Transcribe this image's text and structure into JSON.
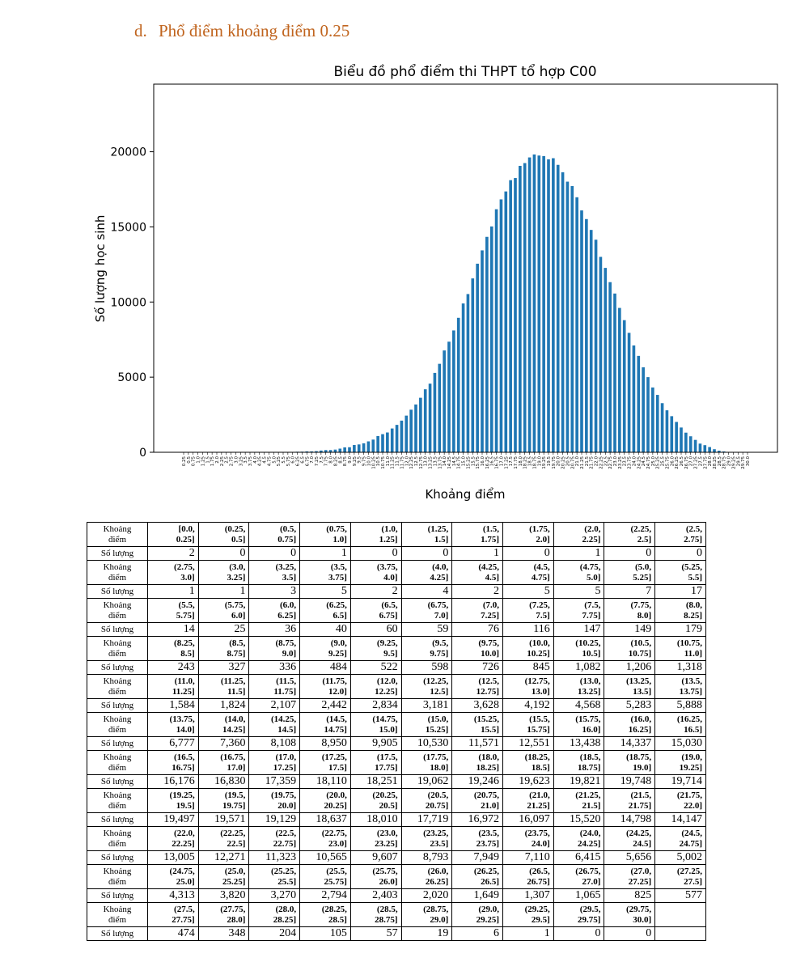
{
  "heading": {
    "marker": "d.",
    "text": "Phổ điểm khoảng điểm 0.25"
  },
  "chart_data": {
    "type": "bar",
    "title": "Biểu đồ phổ điểm thi THPT tổ hợp C00",
    "xlabel": "Khoảng điểm",
    "ylabel": "Số lượng học sinh",
    "ylim": [
      0,
      24500
    ],
    "yticks": [
      0,
      5000,
      10000,
      15000,
      20000
    ],
    "bar_color": "#1f77b4",
    "categories": [
      "0.25",
      "0.5",
      "0.75",
      "1.0",
      "1.25",
      "1.5",
      "1.75",
      "2.0",
      "2.25",
      "2.5",
      "2.75",
      "3.0",
      "3.25",
      "3.5",
      "3.75",
      "4.0",
      "4.25",
      "4.5",
      "4.75",
      "5.0",
      "5.25",
      "5.5",
      "5.75",
      "6.0",
      "6.25",
      "6.5",
      "6.75",
      "7.0",
      "7.25",
      "7.5",
      "7.75",
      "8.0",
      "8.25",
      "8.5",
      "8.75",
      "9.0",
      "9.25",
      "9.5",
      "9.75",
      "10.0",
      "10.25",
      "10.5",
      "10.75",
      "11.0",
      "11.25",
      "11.5",
      "11.75",
      "12.0",
      "12.25",
      "12.5",
      "12.75",
      "13.0",
      "13.25",
      "13.5",
      "13.75",
      "14.0",
      "14.25",
      "14.5",
      "14.75",
      "15.0",
      "15.25",
      "15.5",
      "15.75",
      "16.0",
      "16.25",
      "16.5",
      "16.75",
      "17.0",
      "17.25",
      "17.5",
      "17.75",
      "18.0",
      "18.25",
      "18.5",
      "18.75",
      "19.0",
      "19.25",
      "19.5",
      "19.75",
      "20.0",
      "20.25",
      "20.5",
      "20.75",
      "21.0",
      "21.25",
      "21.5",
      "21.75",
      "22.0",
      "22.25",
      "22.5",
      "22.75",
      "23.0",
      "23.25",
      "23.5",
      "23.75",
      "24.0",
      "24.25",
      "24.5",
      "24.75",
      "25.0",
      "25.25",
      "25.5",
      "25.75",
      "26.0",
      "26.25",
      "26.5",
      "26.75",
      "27.0",
      "27.25",
      "27.5",
      "27.75",
      "28.0",
      "28.25",
      "28.5",
      "28.75",
      "29.0",
      "29.25",
      "29.5",
      "29.75",
      "30.0"
    ],
    "values": [
      2,
      0,
      0,
      1,
      0,
      0,
      1,
      0,
      1,
      0,
      0,
      1,
      1,
      3,
      5,
      2,
      4,
      2,
      5,
      5,
      7,
      17,
      14,
      25,
      36,
      40,
      60,
      59,
      76,
      116,
      147,
      149,
      179,
      243,
      327,
      336,
      484,
      522,
      598,
      726,
      845,
      1082,
      1206,
      1318,
      1584,
      1824,
      2107,
      2442,
      2834,
      3181,
      3628,
      4192,
      4568,
      5283,
      5888,
      6777,
      7360,
      8108,
      8950,
      9905,
      10530,
      11571,
      12551,
      13438,
      14337,
      15030,
      16176,
      16830,
      17359,
      18110,
      18251,
      19062,
      19246,
      19623,
      19821,
      19748,
      19714,
      19497,
      19571,
      19129,
      18637,
      18010,
      17719,
      16972,
      16097,
      15520,
      14798,
      14147,
      13005,
      12271,
      11323,
      10565,
      9607,
      8793,
      7949,
      7110,
      6415,
      5656,
      5002,
      4313,
      3820,
      3270,
      2794,
      2403,
      2020,
      1649,
      1307,
      1065,
      825,
      577,
      474,
      348,
      204,
      105,
      57,
      19,
      6,
      1,
      0,
      0
    ]
  },
  "table": {
    "row_header_range": [
      "Khoảng",
      "điểm"
    ],
    "row_header_count": "Số lượng",
    "blocks": [
      {
        "ranges": [
          [
            "[0.0,",
            "0.25]"
          ],
          [
            "(0.25,",
            "0.5]"
          ],
          [
            "(0.5,",
            "0.75]"
          ],
          [
            "(0.75,",
            "1.0]"
          ],
          [
            "(1.0,",
            "1.25]"
          ],
          [
            "(1.25,",
            "1.5]"
          ],
          [
            "(1.5,",
            "1.75]"
          ],
          [
            "(1.75,",
            "2.0]"
          ],
          [
            "(2.0,",
            "2.25]"
          ],
          [
            "(2.25,",
            "2.5]"
          ],
          [
            "(2.5,",
            "2.75]"
          ]
        ],
        "counts": [
          "2",
          "0",
          "0",
          "1",
          "0",
          "0",
          "1",
          "0",
          "1",
          "0",
          "0"
        ]
      },
      {
        "ranges": [
          [
            "(2.75,",
            "3.0]"
          ],
          [
            "(3.0,",
            "3.25]"
          ],
          [
            "(3.25,",
            "3.5]"
          ],
          [
            "(3.5,",
            "3.75]"
          ],
          [
            "(3.75,",
            "4.0]"
          ],
          [
            "(4.0,",
            "4.25]"
          ],
          [
            "(4.25,",
            "4.5]"
          ],
          [
            "(4.5,",
            "4.75]"
          ],
          [
            "(4.75,",
            "5.0]"
          ],
          [
            "(5.0,",
            "5.25]"
          ],
          [
            "(5.25,",
            "5.5]"
          ]
        ],
        "counts": [
          "1",
          "1",
          "3",
          "5",
          "2",
          "4",
          "2",
          "5",
          "5",
          "7",
          "17"
        ]
      },
      {
        "ranges": [
          [
            "(5.5,",
            "5.75]"
          ],
          [
            "(5.75,",
            "6.0]"
          ],
          [
            "(6.0,",
            "6.25]"
          ],
          [
            "(6.25,",
            "6.5]"
          ],
          [
            "(6.5,",
            "6.75]"
          ],
          [
            "(6.75,",
            "7.0]"
          ],
          [
            "(7.0,",
            "7.25]"
          ],
          [
            "(7.25,",
            "7.5]"
          ],
          [
            "(7.5,",
            "7.75]"
          ],
          [
            "(7.75,",
            "8.0]"
          ],
          [
            "(8.0,",
            "8.25]"
          ]
        ],
        "counts": [
          "14",
          "25",
          "36",
          "40",
          "60",
          "59",
          "76",
          "116",
          "147",
          "149",
          "179"
        ]
      },
      {
        "ranges": [
          [
            "(8.25,",
            "8.5]"
          ],
          [
            "(8.5,",
            "8.75]"
          ],
          [
            "(8.75,",
            "9.0]"
          ],
          [
            "(9.0,",
            "9.25]"
          ],
          [
            "(9.25,",
            "9.5]"
          ],
          [
            "(9.5,",
            "9.75]"
          ],
          [
            "(9.75,",
            "10.0]"
          ],
          [
            "(10.0,",
            "10.25]"
          ],
          [
            "(10.25,",
            "10.5]"
          ],
          [
            "(10.5,",
            "10.75]"
          ],
          [
            "(10.75,",
            "11.0]"
          ]
        ],
        "counts": [
          "243",
          "327",
          "336",
          "484",
          "522",
          "598",
          "726",
          "845",
          "1,082",
          "1,206",
          "1,318"
        ]
      },
      {
        "ranges": [
          [
            "(11.0,",
            "11.25]"
          ],
          [
            "(11.25,",
            "11.5]"
          ],
          [
            "(11.5,",
            "11.75]"
          ],
          [
            "(11.75,",
            "12.0]"
          ],
          [
            "(12.0,",
            "12.25]"
          ],
          [
            "(12.25,",
            "12.5]"
          ],
          [
            "(12.5,",
            "12.75]"
          ],
          [
            "(12.75,",
            "13.0]"
          ],
          [
            "(13.0,",
            "13.25]"
          ],
          [
            "(13.25,",
            "13.5]"
          ],
          [
            "(13.5,",
            "13.75]"
          ]
        ],
        "counts": [
          "1,584",
          "1,824",
          "2,107",
          "2,442",
          "2,834",
          "3,181",
          "3,628",
          "4,192",
          "4,568",
          "5,283",
          "5,888"
        ]
      },
      {
        "ranges": [
          [
            "(13.75,",
            "14.0]"
          ],
          [
            "(14.0,",
            "14.25]"
          ],
          [
            "(14.25,",
            "14.5]"
          ],
          [
            "(14.5,",
            "14.75]"
          ],
          [
            "(14.75,",
            "15.0]"
          ],
          [
            "(15.0,",
            "15.25]"
          ],
          [
            "(15.25,",
            "15.5]"
          ],
          [
            "(15.5,",
            "15.75]"
          ],
          [
            "(15.75,",
            "16.0]"
          ],
          [
            "(16.0,",
            "16.25]"
          ],
          [
            "(16.25,",
            "16.5]"
          ]
        ],
        "counts": [
          "6,777",
          "7,360",
          "8,108",
          "8,950",
          "9,905",
          "10,530",
          "11,571",
          "12,551",
          "13,438",
          "14,337",
          "15,030"
        ]
      },
      {
        "ranges": [
          [
            "(16.5,",
            "16.75]"
          ],
          [
            "(16.75,",
            "17.0]"
          ],
          [
            "(17.0,",
            "17.25]"
          ],
          [
            "(17.25,",
            "17.5]"
          ],
          [
            "(17.5,",
            "17.75]"
          ],
          [
            "(17.75,",
            "18.0]"
          ],
          [
            "(18.0,",
            "18.25]"
          ],
          [
            "(18.25,",
            "18.5]"
          ],
          [
            "(18.5,",
            "18.75]"
          ],
          [
            "(18.75,",
            "19.0]"
          ],
          [
            "(19.0,",
            "19.25]"
          ]
        ],
        "counts": [
          "16,176",
          "16,830",
          "17,359",
          "18,110",
          "18,251",
          "19,062",
          "19,246",
          "19,623",
          "19,821",
          "19,748",
          "19,714"
        ]
      },
      {
        "ranges": [
          [
            "(19.25,",
            "19.5]"
          ],
          [
            "(19.5,",
            "19.75]"
          ],
          [
            "(19.75,",
            "20.0]"
          ],
          [
            "(20.0,",
            "20.25]"
          ],
          [
            "(20.25,",
            "20.5]"
          ],
          [
            "(20.5,",
            "20.75]"
          ],
          [
            "(20.75,",
            "21.0]"
          ],
          [
            "(21.0,",
            "21.25]"
          ],
          [
            "(21.25,",
            "21.5]"
          ],
          [
            "(21.5,",
            "21.75]"
          ],
          [
            "(21.75,",
            "22.0]"
          ]
        ],
        "counts": [
          "19,497",
          "19,571",
          "19,129",
          "18,637",
          "18,010",
          "17,719",
          "16,972",
          "16,097",
          "15,520",
          "14,798",
          "14,147"
        ]
      },
      {
        "ranges": [
          [
            "(22.0,",
            "22.25]"
          ],
          [
            "(22.25,",
            "22.5]"
          ],
          [
            "(22.5,",
            "22.75]"
          ],
          [
            "(22.75,",
            "23.0]"
          ],
          [
            "(23.0,",
            "23.25]"
          ],
          [
            "(23.25,",
            "23.5]"
          ],
          [
            "(23.5,",
            "23.75]"
          ],
          [
            "(23.75,",
            "24.0]"
          ],
          [
            "(24.0,",
            "24.25]"
          ],
          [
            "(24.25,",
            "24.5]"
          ],
          [
            "(24.5,",
            "24.75]"
          ]
        ],
        "counts": [
          "13,005",
          "12,271",
          "11,323",
          "10,565",
          "9,607",
          "8,793",
          "7,949",
          "7,110",
          "6,415",
          "5,656",
          "5,002"
        ]
      },
      {
        "ranges": [
          [
            "(24.75,",
            "25.0]"
          ],
          [
            "(25.0,",
            "25.25]"
          ],
          [
            "(25.25,",
            "25.5]"
          ],
          [
            "(25.5,",
            "25.75]"
          ],
          [
            "(25.75,",
            "26.0]"
          ],
          [
            "(26.0,",
            "26.25]"
          ],
          [
            "(26.25,",
            "26.5]"
          ],
          [
            "(26.5,",
            "26.75]"
          ],
          [
            "(26.75,",
            "27.0]"
          ],
          [
            "(27.0,",
            "27.25]"
          ],
          [
            "(27.25,",
            "27.5]"
          ]
        ],
        "counts": [
          "4,313",
          "3,820",
          "3,270",
          "2,794",
          "2,403",
          "2,020",
          "1,649",
          "1,307",
          "1,065",
          "825",
          "577"
        ]
      },
      {
        "ranges": [
          [
            "(27.5,",
            "27.75]"
          ],
          [
            "(27.75,",
            "28.0]"
          ],
          [
            "(28.0,",
            "28.25]"
          ],
          [
            "(28.25,",
            "28.5]"
          ],
          [
            "(28.5,",
            "28.75]"
          ],
          [
            "(28.75,",
            "29.0]"
          ],
          [
            "(29.0,",
            "29.25]"
          ],
          [
            "(29.25,",
            "29.5]"
          ],
          [
            "(29.5,",
            "29.75]"
          ],
          [
            "(29.75,",
            "30.0]"
          ]
        ],
        "counts": [
          "474",
          "348",
          "204",
          "105",
          "57",
          "19",
          "6",
          "1",
          "0",
          "0"
        ]
      }
    ]
  }
}
